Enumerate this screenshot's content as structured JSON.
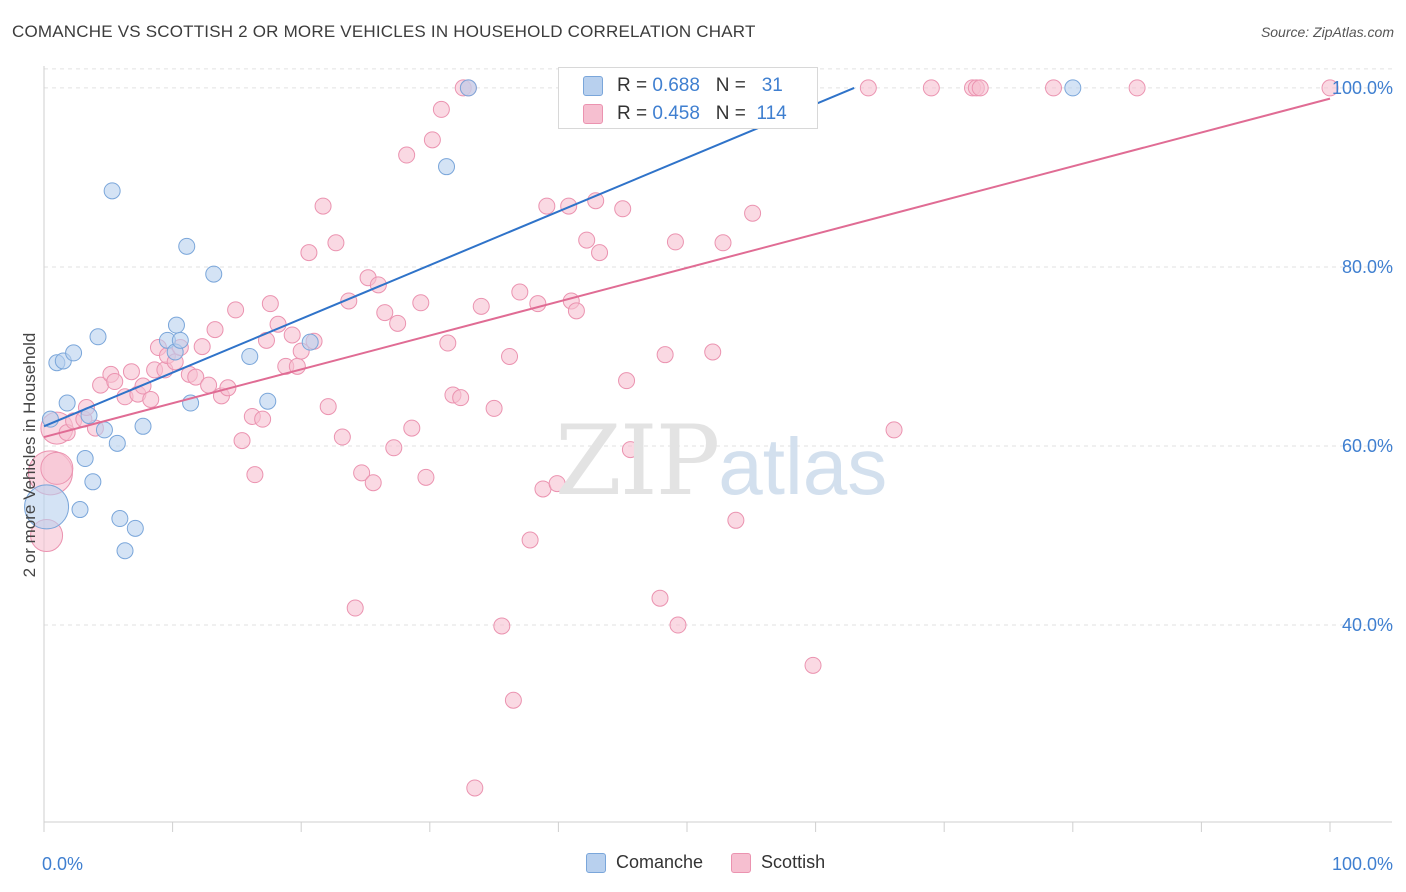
{
  "header": {
    "title": "COMANCHE VS SCOTTISH 2 OR MORE VEHICLES IN HOUSEHOLD CORRELATION CHART",
    "source": "Source: ZipAtlas.com"
  },
  "legend_box": {
    "rows": [
      {
        "r_label": "R =",
        "r_value": "0.688",
        "n_label": "N =",
        "n_value": "31"
      },
      {
        "r_label": "R =",
        "r_value": "0.458",
        "n_label": "N =",
        "n_value": "114"
      }
    ]
  },
  "bottom_legend": {
    "items": [
      "Comanche",
      "Scottish"
    ]
  },
  "watermark": {
    "zip": "ZIP",
    "atlas": "atlas"
  },
  "colors": {
    "comanche_fill": "#b8d0ee",
    "comanche_stroke": "#7aa6da",
    "comanche_line": "#2f73c9",
    "scottish_fill": "#f6bfd0",
    "scottish_stroke": "#eb93b0",
    "scottish_line": "#e06c94",
    "axis_text": "#3f7fd0",
    "grid": "#e2e2e2"
  },
  "chart_data": {
    "type": "scatter",
    "title": "COMANCHE VS SCOTTISH 2 OR MORE VEHICLES IN HOUSEHOLD CORRELATION CHART",
    "xlabel": "",
    "ylabel": "2 or more Vehicles in Household",
    "xlim": [
      0,
      100
    ],
    "ylim": [
      18,
      102
    ],
    "x_tick_labels": [
      "0.0%",
      "100.0%"
    ],
    "y_tick_labels": [
      "40.0%",
      "60.0%",
      "80.0%",
      "100.0%"
    ],
    "y_ticks": [
      40,
      60,
      80,
      100
    ],
    "grid": true,
    "legend_position": "bottom",
    "series": [
      {
        "name": "Comanche",
        "r": 0.688,
        "n": 31,
        "trend": {
          "x0": 0,
          "y0": 62.2,
          "x1": 63,
          "y1": 100
        },
        "points": [
          [
            0.2,
            53.2,
            3
          ],
          [
            0.5,
            63.0,
            1
          ],
          [
            1.0,
            69.3,
            1
          ],
          [
            1.5,
            69.5,
            1
          ],
          [
            1.8,
            64.8,
            1
          ],
          [
            2.3,
            70.4,
            1
          ],
          [
            2.8,
            52.9,
            1
          ],
          [
            3.2,
            58.6,
            1
          ],
          [
            3.5,
            63.4,
            1
          ],
          [
            3.8,
            56.0,
            1
          ],
          [
            4.2,
            72.2,
            1
          ],
          [
            4.7,
            61.8,
            1
          ],
          [
            5.3,
            88.5,
            1
          ],
          [
            5.7,
            60.3,
            1
          ],
          [
            5.9,
            51.9,
            1
          ],
          [
            6.3,
            48.3,
            1
          ],
          [
            7.1,
            50.8,
            1
          ],
          [
            7.7,
            62.2,
            1
          ],
          [
            9.6,
            71.8,
            1
          ],
          [
            10.2,
            70.5,
            1
          ],
          [
            10.3,
            73.5,
            1
          ],
          [
            10.6,
            71.8,
            1
          ],
          [
            11.1,
            82.3,
            1
          ],
          [
            11.4,
            64.8,
            1
          ],
          [
            13.2,
            79.2,
            1
          ],
          [
            16.0,
            70.0,
            1
          ],
          [
            17.4,
            65.0,
            1
          ],
          [
            20.7,
            71.6,
            1
          ],
          [
            31.3,
            91.2,
            1
          ],
          [
            33.0,
            100.0,
            1
          ],
          [
            80.0,
            100.0,
            1
          ]
        ]
      },
      {
        "name": "Scottish",
        "r": 0.458,
        "n": 114,
        "trend": {
          "x0": 0,
          "y0": 61.0,
          "x1": 100,
          "y1": 98.8
        },
        "points": [
          [
            0.2,
            50.0,
            2
          ],
          [
            0.5,
            57.0,
            3
          ],
          [
            1.0,
            62.0,
            2
          ],
          [
            1.8,
            61.5,
            1
          ],
          [
            2.3,
            62.8,
            1
          ],
          [
            3.1,
            63.0,
            1
          ],
          [
            3.3,
            64.3,
            1
          ],
          [
            4.0,
            62.0,
            1
          ],
          [
            4.4,
            66.8,
            1
          ],
          [
            5.2,
            68.0,
            1
          ],
          [
            5.5,
            67.2,
            1
          ],
          [
            6.3,
            65.5,
            1
          ],
          [
            6.8,
            68.3,
            1
          ],
          [
            7.3,
            65.8,
            1
          ],
          [
            7.7,
            66.7,
            1
          ],
          [
            8.3,
            65.2,
            1
          ],
          [
            8.6,
            68.5,
            1
          ],
          [
            8.9,
            71.0,
            1
          ],
          [
            9.4,
            68.5,
            1
          ],
          [
            9.6,
            70.1,
            1
          ],
          [
            10.2,
            69.4,
            1
          ],
          [
            10.6,
            71.0,
            1
          ],
          [
            11.3,
            68.0,
            1
          ],
          [
            11.8,
            67.7,
            1
          ],
          [
            12.3,
            71.1,
            1
          ],
          [
            12.8,
            66.8,
            1
          ],
          [
            13.3,
            73.0,
            1
          ],
          [
            13.8,
            65.6,
            1
          ],
          [
            14.3,
            66.5,
            1
          ],
          [
            14.9,
            75.2,
            1
          ],
          [
            15.4,
            60.6,
            1
          ],
          [
            16.2,
            63.3,
            1
          ],
          [
            16.4,
            56.8,
            1
          ],
          [
            17.0,
            63.0,
            1
          ],
          [
            17.3,
            71.8,
            1
          ],
          [
            17.6,
            75.9,
            1
          ],
          [
            18.2,
            73.6,
            1
          ],
          [
            18.8,
            68.9,
            1
          ],
          [
            19.3,
            72.4,
            1
          ],
          [
            19.7,
            68.9,
            1
          ],
          [
            20.0,
            70.6,
            1
          ],
          [
            20.6,
            81.6,
            1
          ],
          [
            21.0,
            71.7,
            1
          ],
          [
            21.7,
            86.8,
            1
          ],
          [
            22.1,
            64.4,
            1
          ],
          [
            22.7,
            82.7,
            1
          ],
          [
            23.2,
            61.0,
            1
          ],
          [
            23.7,
            76.2,
            1
          ],
          [
            24.2,
            41.9,
            1
          ],
          [
            24.7,
            57.0,
            1
          ],
          [
            25.2,
            78.8,
            1
          ],
          [
            25.6,
            55.9,
            1
          ],
          [
            26.0,
            78.0,
            1
          ],
          [
            26.5,
            74.9,
            1
          ],
          [
            27.2,
            59.8,
            1
          ],
          [
            27.5,
            73.7,
            1
          ],
          [
            28.2,
            92.5,
            1
          ],
          [
            28.6,
            62.0,
            1
          ],
          [
            29.3,
            76.0,
            1
          ],
          [
            29.7,
            56.5,
            1
          ],
          [
            30.2,
            94.2,
            1
          ],
          [
            30.9,
            97.6,
            1
          ],
          [
            31.4,
            71.5,
            1
          ],
          [
            31.8,
            65.7,
            1
          ],
          [
            32.4,
            65.4,
            1
          ],
          [
            32.6,
            100.0,
            1
          ],
          [
            33.0,
            100.0,
            1
          ],
          [
            33.5,
            21.8,
            1
          ],
          [
            34.0,
            75.6,
            1
          ],
          [
            35.0,
            64.2,
            1
          ],
          [
            35.6,
            39.9,
            1
          ],
          [
            36.2,
            70.0,
            1
          ],
          [
            36.5,
            31.6,
            1
          ],
          [
            37.0,
            77.2,
            1
          ],
          [
            37.8,
            49.5,
            1
          ],
          [
            38.4,
            75.9,
            1
          ],
          [
            38.8,
            55.2,
            1
          ],
          [
            39.1,
            86.8,
            1
          ],
          [
            39.9,
            55.8,
            1
          ],
          [
            40.8,
            86.8,
            1
          ],
          [
            41.0,
            76.2,
            1
          ],
          [
            41.4,
            75.1,
            1
          ],
          [
            42.2,
            83.0,
            1
          ],
          [
            42.9,
            87.4,
            1
          ],
          [
            43.2,
            81.6,
            1
          ],
          [
            44.0,
            100.0,
            1
          ],
          [
            45.0,
            86.5,
            1
          ],
          [
            45.3,
            67.3,
            1
          ],
          [
            45.6,
            59.6,
            1
          ],
          [
            47.5,
            100.0,
            1
          ],
          [
            47.7,
            100.0,
            1
          ],
          [
            47.9,
            43.0,
            1
          ],
          [
            48.3,
            70.2,
            1
          ],
          [
            49.1,
            82.8,
            1
          ],
          [
            49.3,
            40.0,
            1
          ],
          [
            52.0,
            70.5,
            1
          ],
          [
            52.8,
            82.7,
            1
          ],
          [
            53.8,
            51.7,
            1
          ],
          [
            55.1,
            86.0,
            1
          ],
          [
            58.5,
            100.0,
            1
          ],
          [
            58.8,
            100.0,
            1
          ],
          [
            59.1,
            100.0,
            1
          ],
          [
            59.4,
            100.0,
            1
          ],
          [
            59.8,
            35.5,
            1
          ],
          [
            64.1,
            100.0,
            1
          ],
          [
            66.1,
            61.8,
            1
          ],
          [
            69.0,
            100.0,
            1
          ],
          [
            72.2,
            100.0,
            1
          ],
          [
            72.5,
            100.0,
            1
          ],
          [
            72.8,
            100.0,
            1
          ],
          [
            78.5,
            100.0,
            1
          ],
          [
            85.0,
            100.0,
            1
          ],
          [
            100.0,
            100.0,
            1
          ],
          [
            1.0,
            57.5,
            2
          ]
        ]
      }
    ]
  }
}
